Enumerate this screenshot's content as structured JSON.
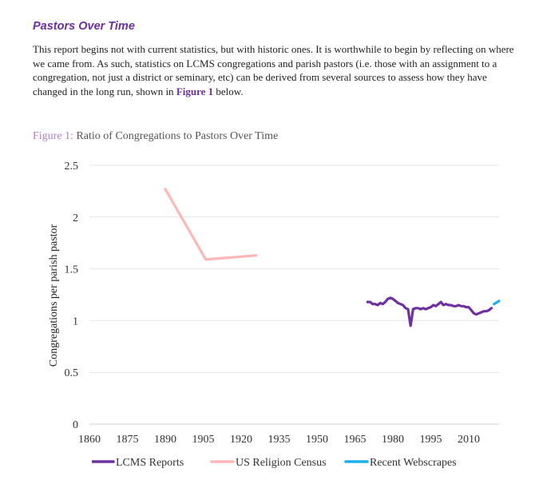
{
  "document": {
    "heading": "Pastors Over Time",
    "paragraph_before": "This report begins not with current statistics, but with historic ones. It is worthwhile to begin by reflecting on where we came from. As such, statistics on LCMS congregations and parish pastors (i.e. those with an assignment to a congregation, not just a district or seminary, etc) can be derived from several sources to assess how they have changed in the long run, shown in ",
    "paragraph_link": "Figure 1",
    "paragraph_after": " below.",
    "figure_number": "Figure 1:",
    "figure_title": "Ratio of Congregations to Pastors Over Time"
  },
  "chart_data": {
    "type": "line",
    "title": "Ratio of Congregations to Pastors Over Time",
    "xlabel": "",
    "ylabel": "Congregations per parish pastor",
    "xlim": [
      1860,
      2022
    ],
    "ylim": [
      0,
      2.5
    ],
    "x_ticks": [
      1860,
      1875,
      1890,
      1905,
      1920,
      1935,
      1950,
      1965,
      1980,
      1995,
      2010
    ],
    "y_ticks": [
      0,
      0.5,
      1,
      1.5,
      2,
      2.5
    ],
    "y_tick_labels": [
      "0",
      "0.5",
      "1",
      "1.5",
      "2",
      "2.5"
    ],
    "grid": true,
    "legend_position": "bottom",
    "series": [
      {
        "name": "LCMS Reports",
        "color": "#7030a0",
        "x": [
          1970,
          1971,
          1972,
          1973,
          1974,
          1975,
          1976,
          1977,
          1978,
          1979,
          1980,
          1981,
          1982,
          1983,
          1984,
          1985,
          1986,
          1987,
          1988,
          1989,
          1990,
          1991,
          1992,
          1993,
          1994,
          1995,
          1996,
          1997,
          1998,
          1999,
          2000,
          2001,
          2002,
          2003,
          2004,
          2005,
          2006,
          2007,
          2008,
          2009,
          2010,
          2011,
          2012,
          2013,
          2014,
          2015,
          2016,
          2017,
          2018,
          2019
        ],
        "values": [
          1.18,
          1.18,
          1.16,
          1.16,
          1.15,
          1.17,
          1.16,
          1.18,
          1.21,
          1.22,
          1.21,
          1.19,
          1.17,
          1.16,
          1.15,
          1.12,
          1.11,
          0.95,
          1.11,
          1.12,
          1.12,
          1.11,
          1.12,
          1.11,
          1.12,
          1.13,
          1.15,
          1.14,
          1.16,
          1.18,
          1.15,
          1.16,
          1.15,
          1.15,
          1.14,
          1.14,
          1.15,
          1.14,
          1.14,
          1.13,
          1.13,
          1.1,
          1.07,
          1.06,
          1.07,
          1.08,
          1.09,
          1.09,
          1.1,
          1.12
        ]
      },
      {
        "name": "US Religion Census",
        "color": "#ffb6b6",
        "x": [
          1890,
          1906,
          1926
        ],
        "values": [
          2.27,
          1.59,
          1.63
        ]
      },
      {
        "name": "Recent Webscrapes",
        "color": "#1ab0e8",
        "x": [
          2020,
          2022
        ],
        "values": [
          1.16,
          1.19
        ]
      }
    ]
  }
}
